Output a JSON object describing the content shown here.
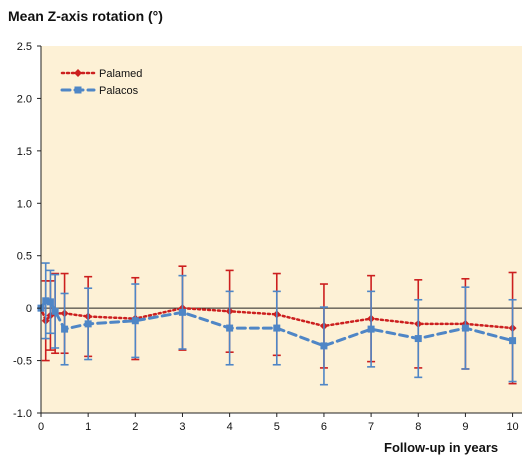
{
  "chart_data": {
    "type": "line",
    "title": "Mean Z-axis rotation (°)",
    "xlabel": "Follow-up in years",
    "ylabel": "",
    "xlim": [
      0,
      10.2
    ],
    "ylim": [
      -1.0,
      2.5
    ],
    "xticks": [
      0,
      1,
      2,
      3,
      4,
      5,
      6,
      7,
      8,
      9,
      10
    ],
    "yticks": [
      2.5,
      2.0,
      1.5,
      1.0,
      0.5,
      0,
      -0.5,
      -1.0
    ],
    "ytick_labels": [
      "2.5",
      "2.0",
      "1.5",
      "1.0",
      "0.5",
      "0",
      "-0.5",
      "-1.0"
    ],
    "legend_position": "top-left",
    "series": [
      {
        "name": "Palamed",
        "color": "#cc1f1f",
        "marker": "diamond",
        "line_style": "dotted",
        "x": [
          0,
          0.1,
          0.2,
          0.3,
          0.5,
          1,
          2,
          3,
          4,
          5,
          6,
          7,
          8,
          9,
          10
        ],
        "y": [
          0,
          -0.12,
          -0.07,
          -0.05,
          -0.05,
          -0.08,
          -0.1,
          0,
          -0.03,
          -0.06,
          -0.17,
          -0.1,
          -0.15,
          -0.15,
          -0.19
        ],
        "err": [
          0,
          0.38,
          0.33,
          0.38,
          0.38,
          0.38,
          0.39,
          0.4,
          0.39,
          0.39,
          0.4,
          0.41,
          0.42,
          0.43,
          0.53
        ]
      },
      {
        "name": "Palacos",
        "color": "#4f86c6",
        "marker": "square",
        "line_style": "dashed",
        "x": [
          0,
          0.1,
          0.2,
          0.3,
          0.5,
          1,
          2,
          3,
          4,
          5,
          6,
          7,
          8,
          9,
          10
        ],
        "y": [
          0,
          0.07,
          0.06,
          -0.03,
          -0.2,
          -0.15,
          -0.12,
          -0.04,
          -0.19,
          -0.19,
          -0.36,
          -0.2,
          -0.29,
          -0.19,
          -0.31
        ],
        "err": [
          0,
          0.36,
          0.3,
          0.35,
          0.34,
          0.34,
          0.35,
          0.35,
          0.35,
          0.35,
          0.37,
          0.36,
          0.37,
          0.39,
          0.39
        ]
      }
    ]
  }
}
